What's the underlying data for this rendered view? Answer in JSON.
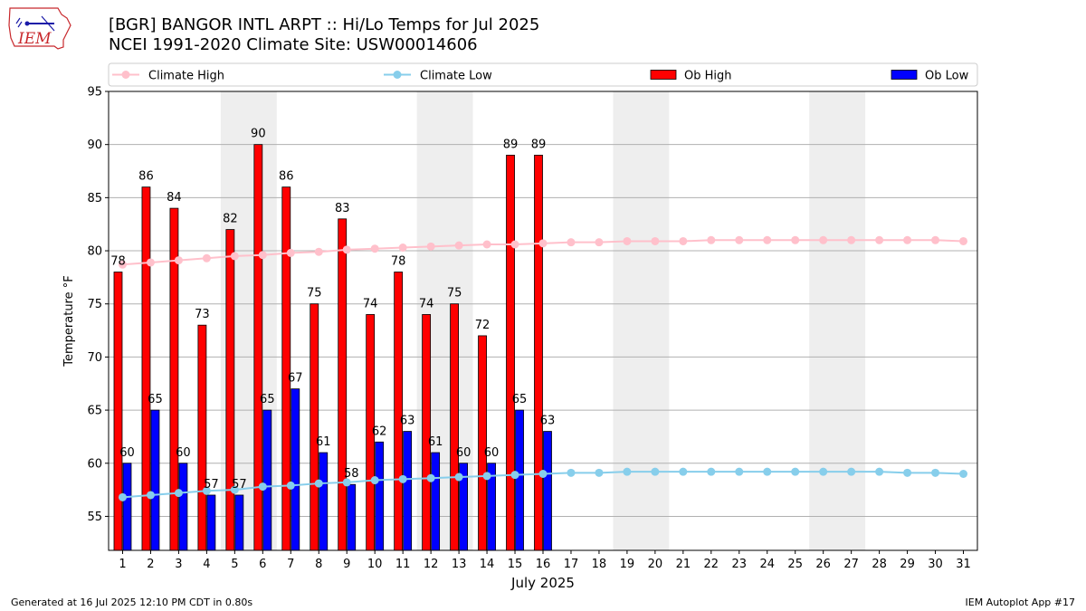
{
  "header": {
    "title_line1": "[BGR] BANGOR INTL ARPT :: Hi/Lo Temps for Jul 2025",
    "title_line2": "NCEI 1991-2020 Climate Site: USW00014606",
    "logo_text": "IEM"
  },
  "footer": {
    "generated": "Generated at 16 Jul 2025 12:10 PM CDT in 0.80s",
    "app": "IEM Autoplot App #17"
  },
  "chart_data": {
    "type": "bar",
    "xlabel": "July 2025",
    "ylabel": "Temperature °F",
    "ylim": [
      51.8,
      95
    ],
    "yticks": [
      55,
      60,
      65,
      70,
      75,
      80,
      85,
      90,
      95
    ],
    "days": [
      1,
      2,
      3,
      4,
      5,
      6,
      7,
      8,
      9,
      10,
      11,
      12,
      13,
      14,
      15,
      16,
      17,
      18,
      19,
      20,
      21,
      22,
      23,
      24,
      25,
      26,
      27,
      28,
      29,
      30,
      31
    ],
    "weekend_days": [
      5,
      6,
      12,
      13,
      19,
      20,
      26,
      27
    ],
    "grid": true,
    "legend_position": "top",
    "series": [
      {
        "name": "Climate High",
        "kind": "line",
        "color": "#ffc0cb",
        "values": [
          78.7,
          78.9,
          79.1,
          79.3,
          79.5,
          79.6,
          79.8,
          79.9,
          80.1,
          80.2,
          80.3,
          80.4,
          80.5,
          80.6,
          80.6,
          80.7,
          80.8,
          80.8,
          80.9,
          80.9,
          80.9,
          81.0,
          81.0,
          81.0,
          81.0,
          81.0,
          81.0,
          81.0,
          81.0,
          81.0,
          80.9
        ]
      },
      {
        "name": "Climate Low",
        "kind": "line",
        "color": "#87ceeb",
        "values": [
          56.8,
          57.0,
          57.2,
          57.4,
          57.5,
          57.8,
          57.9,
          58.1,
          58.2,
          58.4,
          58.5,
          58.6,
          58.7,
          58.8,
          58.9,
          59.0,
          59.1,
          59.1,
          59.2,
          59.2,
          59.2,
          59.2,
          59.2,
          59.2,
          59.2,
          59.2,
          59.2,
          59.2,
          59.1,
          59.1,
          59.0
        ]
      },
      {
        "name": "Ob High",
        "kind": "bar",
        "color": "#ff0000",
        "values": [
          78,
          86,
          84,
          73,
          82,
          90,
          86,
          75,
          83,
          74,
          78,
          74,
          75,
          72,
          89,
          89
        ]
      },
      {
        "name": "Ob Low",
        "kind": "bar",
        "color": "#0000ff",
        "values": [
          60,
          65,
          60,
          57,
          57,
          65,
          67,
          61,
          58,
          62,
          63,
          61,
          60,
          60,
          65,
          63
        ]
      }
    ]
  }
}
